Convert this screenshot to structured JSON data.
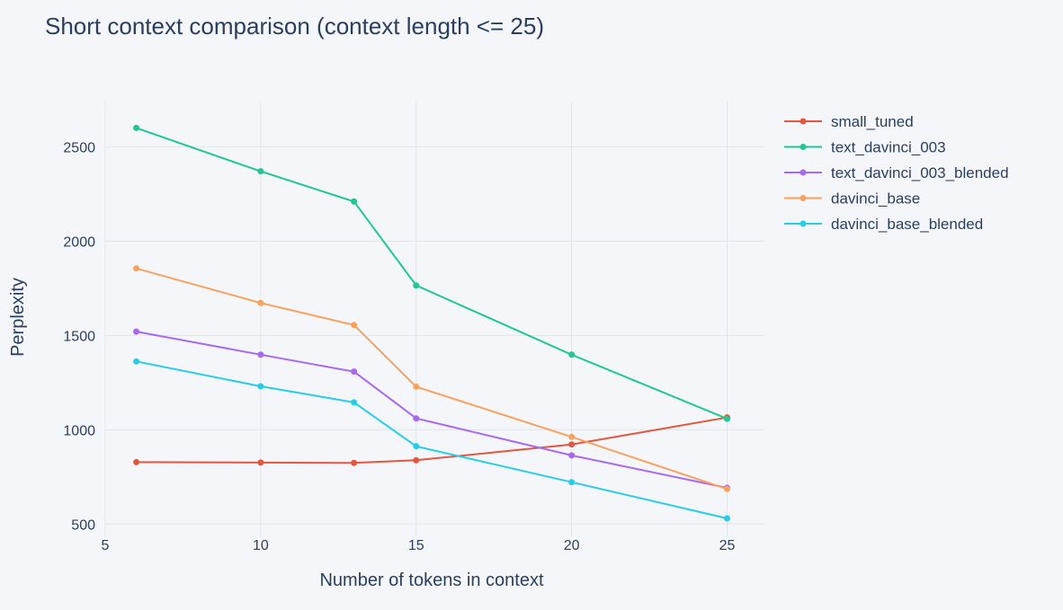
{
  "chart_data": {
    "type": "line",
    "title": "Short context comparison (context length <= 25)",
    "xlabel": "Number of tokens in context",
    "ylabel": "Perplexity",
    "x": [
      6,
      10,
      13,
      15,
      20,
      25
    ],
    "xlim": [
      5,
      26.2
    ],
    "ylim": [
      430,
      2740
    ],
    "xticks": [
      5,
      10,
      15,
      20,
      25
    ],
    "yticks": [
      500,
      1000,
      1500,
      2000,
      2500
    ],
    "grid": true,
    "legend_position": "top-right",
    "series": [
      {
        "name": "small_tuned",
        "color": "#e4563f",
        "values": [
          828,
          826,
          824,
          838,
          922,
          1065
        ]
      },
      {
        "name": "text_davinci_003",
        "color": "#1ec88e",
        "values": [
          2600,
          2370,
          2210,
          1765,
          1398,
          1058
        ]
      },
      {
        "name": "text_davinci_003_blended",
        "color": "#a868f0",
        "values": [
          1520,
          1398,
          1308,
          1060,
          864,
          692
        ]
      },
      {
        "name": "davinci_base",
        "color": "#f9a15e",
        "values": [
          1855,
          1672,
          1555,
          1228,
          962,
          686
        ]
      },
      {
        "name": "davinci_base_blended",
        "color": "#25cde6",
        "values": [
          1362,
          1230,
          1145,
          912,
          722,
          530
        ]
      }
    ]
  }
}
